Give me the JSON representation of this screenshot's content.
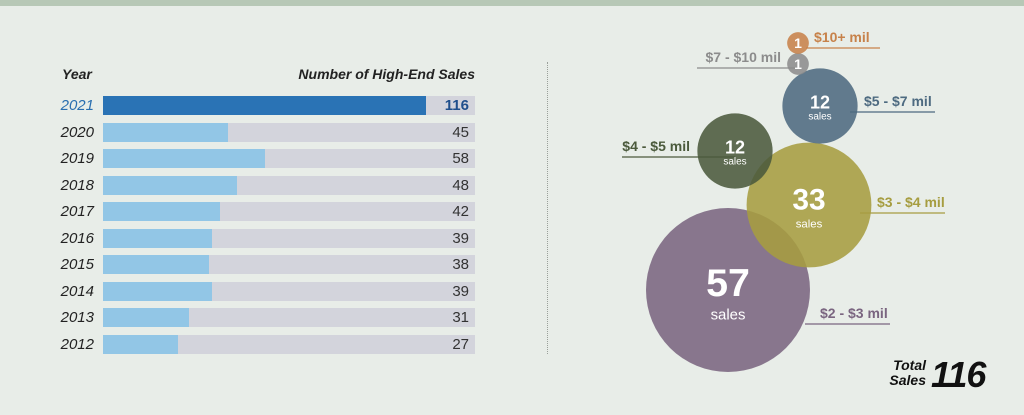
{
  "left": {
    "year_header": "Year",
    "sales_header": "Number of High-End Sales"
  },
  "total": {
    "label_line1": "Total",
    "label_line2": "Sales",
    "value": "116"
  },
  "unit_label": "sales",
  "colors": {
    "bar_highlight": "#2a73b5",
    "bar": "#92c6e6",
    "bar_track": "#d3d4dc",
    "ranges": [
      "#7a6580",
      "#a69d40",
      "#4b5a3c",
      "#4d6a80",
      "#8c8c8c",
      "#c7824a"
    ]
  },
  "chart_data": [
    {
      "type": "bar",
      "orientation": "horizontal",
      "categories": [
        "2021",
        "2020",
        "2019",
        "2018",
        "2017",
        "2016",
        "2015",
        "2014",
        "2013",
        "2012"
      ],
      "values": [
        116,
        45,
        58,
        48,
        42,
        39,
        38,
        39,
        31,
        27
      ],
      "highlight": "2021",
      "ylabel": "Year",
      "xlabel": "Number of High-End Sales"
    },
    {
      "type": "bubble",
      "categories": [
        "$2 - $3 mil",
        "$3 - $4 mil",
        "$4 - $5 mil",
        "$5 - $7 mil",
        "$7 - $10 mil",
        "$10+ mil"
      ],
      "values": [
        57,
        33,
        12,
        12,
        1,
        1
      ]
    }
  ]
}
